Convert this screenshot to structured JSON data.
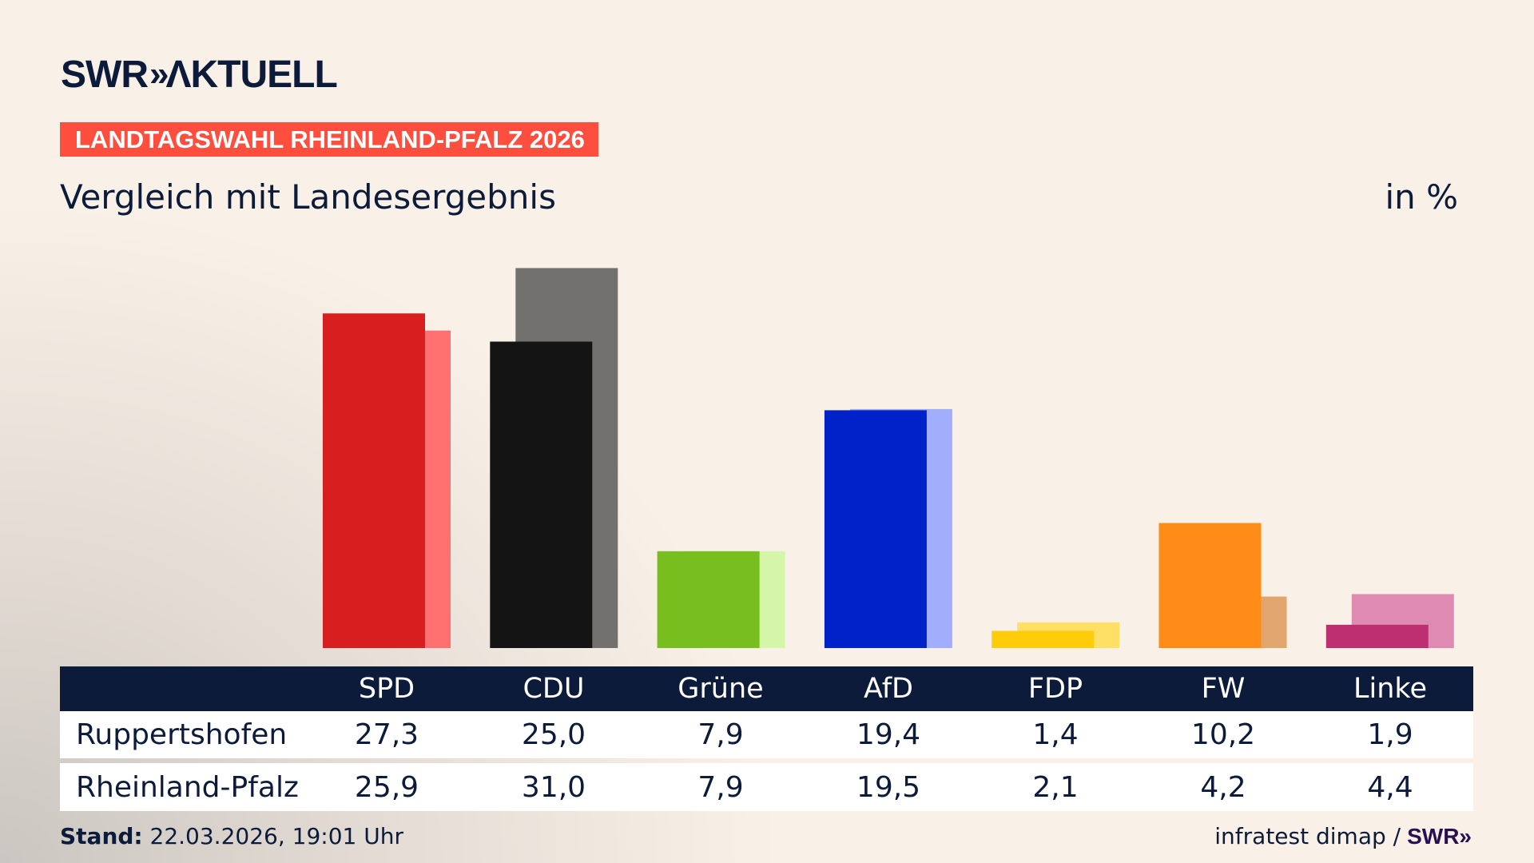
{
  "header": {
    "logo": "SWR AKTUELL",
    "logo_swr": "SWR",
    "logo_chevrons": "»",
    "logo_aktuell": "ΛKTUELL",
    "banner": "LANDTAGSWAHL RHEINLAND-PFALZ 2026",
    "subtitle": "Vergleich mit Landesergebnis",
    "unit": "in %"
  },
  "chart_data": {
    "type": "bar",
    "categories": [
      "SPD",
      "CDU",
      "Grüne",
      "AfD",
      "FDP",
      "FW",
      "Linke"
    ],
    "series": [
      {
        "name": "Ruppertshofen",
        "values": [
          27.3,
          25.0,
          7.9,
          19.4,
          1.4,
          10.2,
          1.9
        ],
        "display": [
          "27,3",
          "25,0",
          "7,9",
          "19,4",
          "1,4",
          "10,2",
          "1,9"
        ]
      },
      {
        "name": "Rheinland-Pfalz",
        "values": [
          25.9,
          31.0,
          7.9,
          19.5,
          2.1,
          4.2,
          4.4
        ],
        "display": [
          "25,9",
          "31,0",
          "7,9",
          "19,5",
          "2,1",
          "4,2",
          "4,4"
        ]
      }
    ],
    "colors_primary": [
      "#d81f1f",
      "#141414",
      "#78be1e",
      "#0022c8",
      "#ffcc0a",
      "#ff8c17",
      "#be2f72"
    ],
    "colors_secondary": [
      "#ff7170",
      "#737170",
      "#d5f5a8",
      "#a0aefc",
      "#ffe066",
      "#e0a66e",
      "#de8ab3"
    ],
    "ylabel": "in %",
    "grid": false
  },
  "footer": {
    "stand_label": "Stand:",
    "stand_value": " 22.03.2026, 19:01 Uhr",
    "source": "infratest dimap /",
    "source_logo": "SWR»"
  }
}
